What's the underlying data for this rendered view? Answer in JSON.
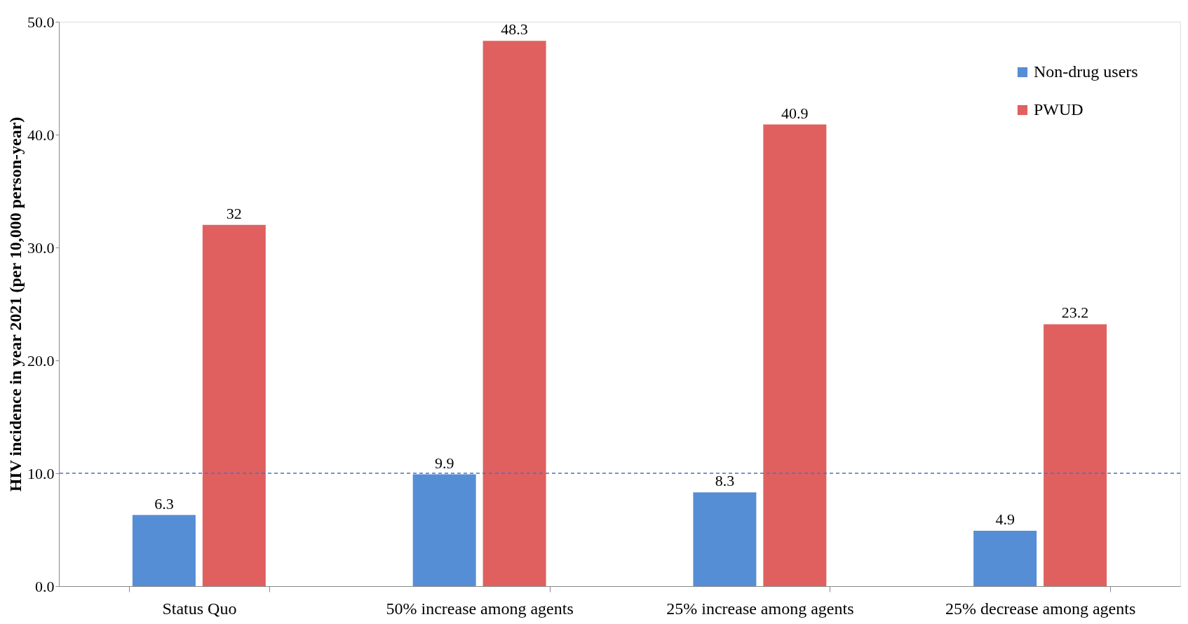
{
  "chart_data": {
    "type": "bar",
    "ylabel": "HIV incidence in year 2021 (per 10,000 person-year)",
    "categories": [
      "Status Quo",
      "50% increase among agents",
      "25% increase among agents",
      "25% decrease among agents"
    ],
    "series": [
      {
        "name": "Non-drug users",
        "color": "#558ed5",
        "values": [
          6.3,
          9.9,
          8.3,
          4.9
        ]
      },
      {
        "name": "PWUD",
        "color": "#e06060",
        "values": [
          32,
          48.3,
          40.9,
          23.2
        ]
      }
    ],
    "ylim": [
      0,
      50
    ],
    "yticks": [
      {
        "value": 0,
        "label": "0.0"
      },
      {
        "value": 10,
        "label": "10.0"
      },
      {
        "value": 20,
        "label": "20.0"
      },
      {
        "value": 30,
        "label": "30.0"
      },
      {
        "value": 40,
        "label": "40.0"
      },
      {
        "value": 50,
        "label": "50.0"
      }
    ],
    "ref_lines": [
      {
        "axis": "y",
        "value": 10,
        "color": "#4472c4",
        "line_style": "dashed"
      }
    ],
    "data_labels": true,
    "grid": false,
    "legend": "top right"
  }
}
